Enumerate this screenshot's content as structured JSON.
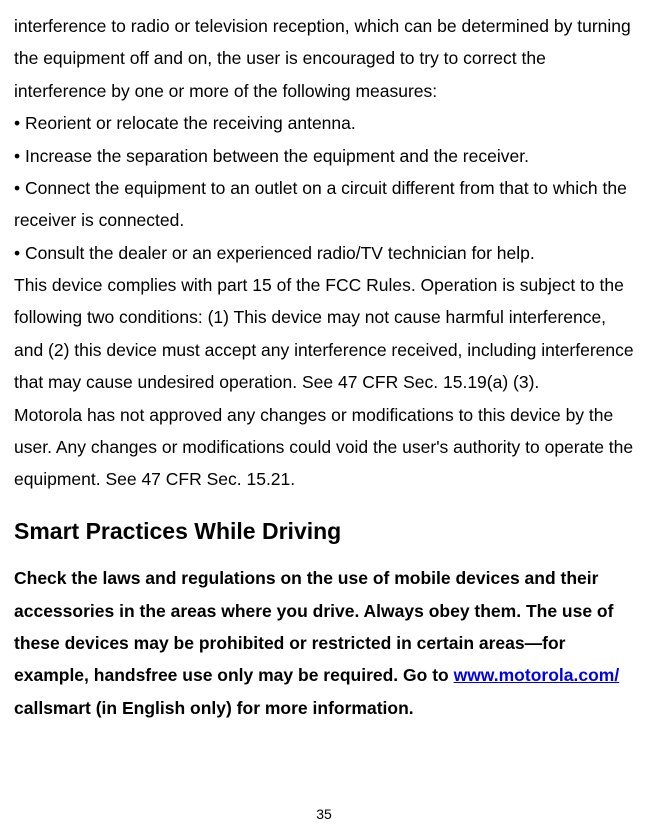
{
  "para1": "interference to radio or television reception, which can be determined by turning the equipment off and on, the user is encouraged to try to correct the interference by one or more of the following measures:",
  "bullet1": "• Reorient or relocate the receiving antenna.",
  "bullet2": "• Increase the separation between the equipment and the receiver.",
  "bullet3": "• Connect the equipment to an outlet on a circuit different from that to which the receiver is connected.",
  "bullet4": "• Consult the dealer or an experienced radio/TV technician for help.",
  "para2": "This device complies with part 15 of the FCC Rules. Operation is subject to the following two conditions: (1) This device may not cause harmful interference, and (2) this device must accept any interference received, including interference that may cause undesired operation. See 47 CFR Sec. 15.19(a) (3).",
  "para3": "Motorola has not approved any changes or modifications to this device by the user. Any changes or modifications could void the user's authority to operate the equipment. See 47 CFR Sec. 15.21.",
  "heading": "Smart Practices While Driving",
  "bold_pre": "Check the laws and regulations on the use of mobile devices and their accessories in the areas where you drive. Always obey them. The use of these devices may be prohibited or restricted in certain areas—for example, handsfree use only may be required. Go to ",
  "link_text": "www.motorola.com/",
  "bold_mid": " callsmart ",
  "bold_post": "(in English only) for more information.",
  "page_number": "35"
}
